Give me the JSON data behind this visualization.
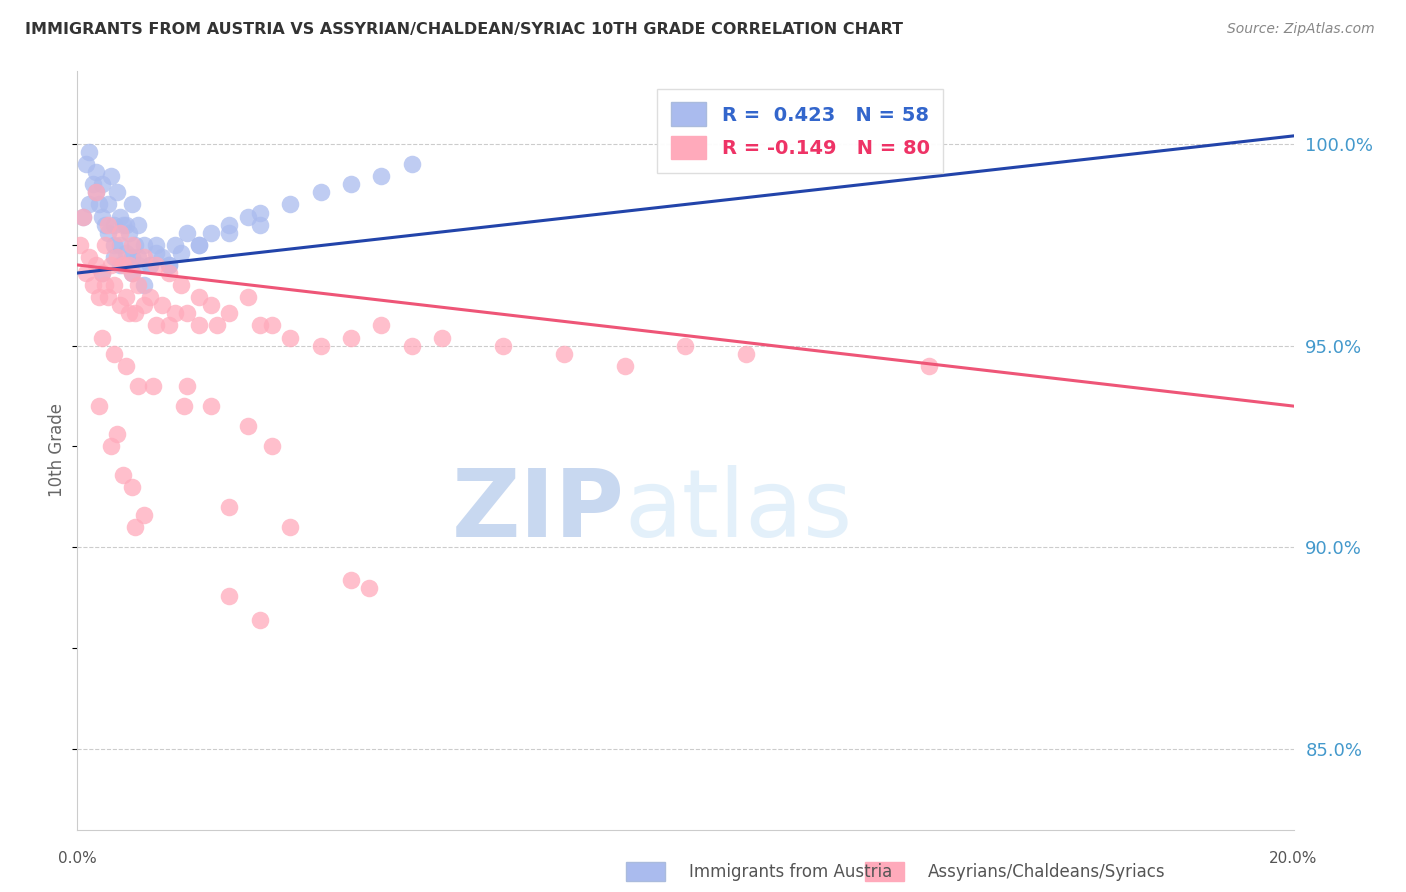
{
  "title": "IMMIGRANTS FROM AUSTRIA VS ASSYRIAN/CHALDEAN/SYRIAC 10TH GRADE CORRELATION CHART",
  "source": "Source: ZipAtlas.com",
  "ylabel": "10th Grade",
  "yticks": [
    100.0,
    95.0,
    90.0,
    85.0
  ],
  "ytick_labels": [
    "100.0%",
    "95.0%",
    "90.0%",
    "85.0%"
  ],
  "xmin": 0.0,
  "xmax": 20.0,
  "ymin": 83.0,
  "ymax": 101.8,
  "legend1_label": "R =  0.423   N = 58",
  "legend2_label": "R = -0.149   N = 80",
  "blue_dot_color": "#aabbee",
  "pink_dot_color": "#ffaabb",
  "blue_line_color": "#2244aa",
  "pink_line_color": "#ee5577",
  "background_color": "#ffffff",
  "blue_line_y0": 96.8,
  "blue_line_y1": 100.2,
  "pink_line_y0": 97.0,
  "pink_line_y1": 93.5,
  "blue_dots_x": [
    0.1,
    0.15,
    0.2,
    0.2,
    0.25,
    0.3,
    0.3,
    0.35,
    0.4,
    0.4,
    0.45,
    0.5,
    0.5,
    0.55,
    0.6,
    0.6,
    0.65,
    0.7,
    0.7,
    0.75,
    0.8,
    0.8,
    0.85,
    0.9,
    0.9,
    0.95,
    1.0,
    1.0,
    1.1,
    1.2,
    1.3,
    1.4,
    1.5,
    1.6,
    1.7,
    1.8,
    2.0,
    2.2,
    2.5,
    2.8,
    3.0,
    3.5,
    4.0,
    4.5,
    5.0,
    5.5,
    0.4,
    0.6,
    0.7,
    0.9,
    1.0,
    1.1,
    1.2,
    1.3,
    1.5,
    2.0,
    2.5,
    3.0
  ],
  "blue_dots_y": [
    98.2,
    99.5,
    99.8,
    98.5,
    99.0,
    98.8,
    99.3,
    98.5,
    98.2,
    99.0,
    98.0,
    97.8,
    98.5,
    99.2,
    98.0,
    97.5,
    98.8,
    97.5,
    98.2,
    98.0,
    97.3,
    98.0,
    97.8,
    97.2,
    98.5,
    97.5,
    97.0,
    98.0,
    97.5,
    97.0,
    97.5,
    97.2,
    97.0,
    97.5,
    97.3,
    97.8,
    97.5,
    97.8,
    98.0,
    98.2,
    98.3,
    98.5,
    98.8,
    99.0,
    99.2,
    99.5,
    96.8,
    97.2,
    97.0,
    96.8,
    97.2,
    96.5,
    97.0,
    97.3,
    97.0,
    97.5,
    97.8,
    98.0
  ],
  "pink_dots_x": [
    0.05,
    0.1,
    0.15,
    0.2,
    0.25,
    0.3,
    0.35,
    0.4,
    0.45,
    0.5,
    0.55,
    0.6,
    0.65,
    0.7,
    0.75,
    0.8,
    0.85,
    0.9,
    0.95,
    1.0,
    1.1,
    1.2,
    1.3,
    1.4,
    1.5,
    1.6,
    1.8,
    2.0,
    2.2,
    2.5,
    2.8,
    3.0,
    3.2,
    3.5,
    4.0,
    4.5,
    5.0,
    5.5,
    6.0,
    7.0,
    8.0,
    9.0,
    10.0,
    11.0,
    14.0,
    0.3,
    0.5,
    0.7,
    0.9,
    1.1,
    1.3,
    1.5,
    1.7,
    2.0,
    2.3,
    0.4,
    0.6,
    0.8,
    1.0,
    0.35,
    0.65,
    0.9,
    1.1,
    0.55,
    0.75,
    0.95,
    2.5,
    3.5,
    4.5,
    1.8,
    2.2,
    2.8,
    3.2,
    4.8,
    0.45,
    0.85,
    1.25,
    1.75,
    2.5,
    3.0
  ],
  "pink_dots_y": [
    97.5,
    98.2,
    96.8,
    97.2,
    96.5,
    97.0,
    96.2,
    96.8,
    97.5,
    96.2,
    97.0,
    96.5,
    97.2,
    96.0,
    97.0,
    96.2,
    97.0,
    96.8,
    95.8,
    96.5,
    96.0,
    96.2,
    95.5,
    96.0,
    95.5,
    95.8,
    95.8,
    95.5,
    96.0,
    95.8,
    96.2,
    95.5,
    95.5,
    95.2,
    95.0,
    95.2,
    95.5,
    95.0,
    95.2,
    95.0,
    94.8,
    94.5,
    95.0,
    94.8,
    94.5,
    98.8,
    98.0,
    97.8,
    97.5,
    97.2,
    97.0,
    96.8,
    96.5,
    96.2,
    95.5,
    95.2,
    94.8,
    94.5,
    94.0,
    93.5,
    92.8,
    91.5,
    90.8,
    92.5,
    91.8,
    90.5,
    91.0,
    90.5,
    89.2,
    94.0,
    93.5,
    93.0,
    92.5,
    89.0,
    96.5,
    95.8,
    94.0,
    93.5,
    88.8,
    88.2
  ]
}
